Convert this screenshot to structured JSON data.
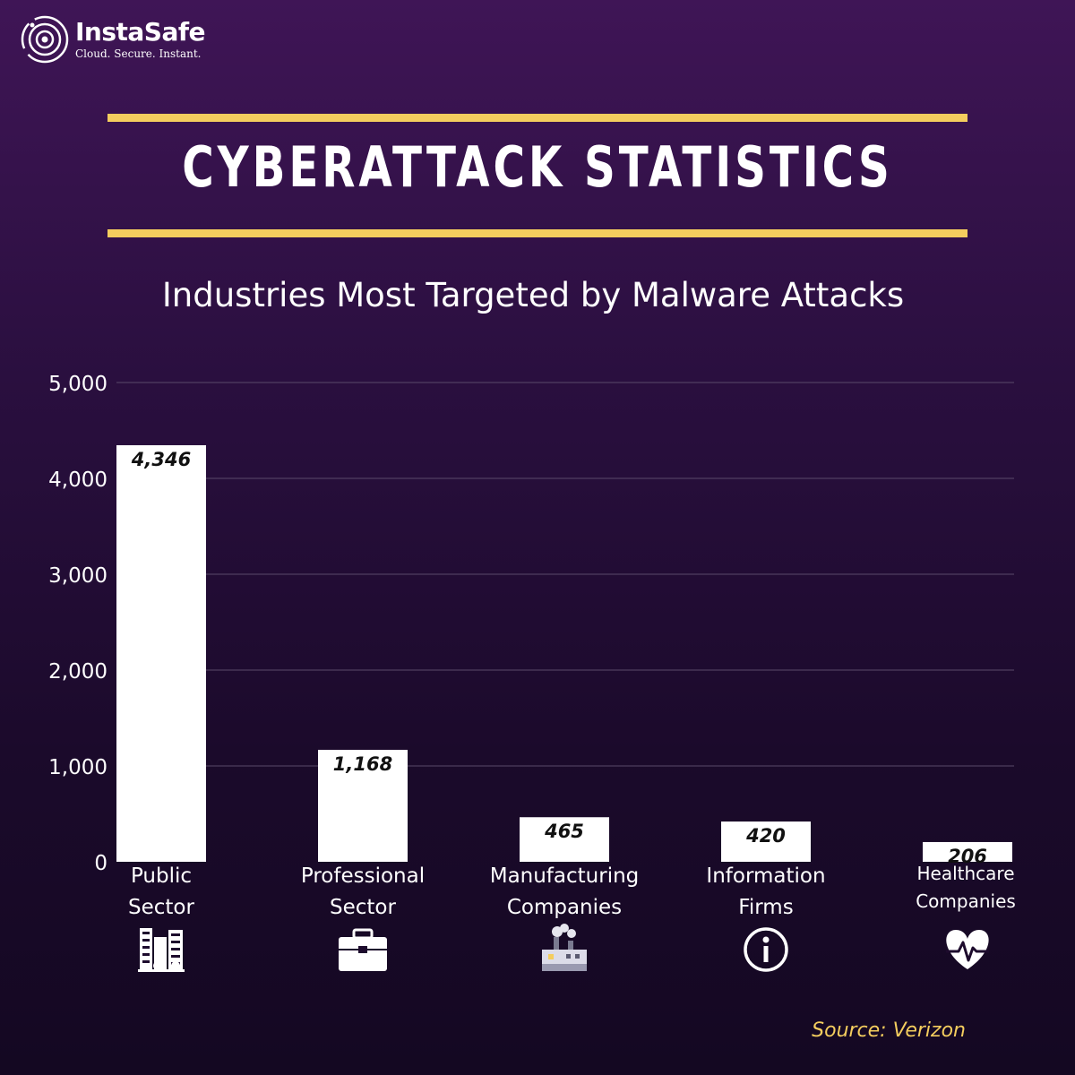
{
  "brand": {
    "name": "InstaSafe",
    "tagline": "Cloud. Secure. Instant."
  },
  "title": "CYBERATTACK STATISTICS",
  "source": "Source: Verizon",
  "colors": {
    "accent": "#f4cd5e",
    "bar": "#ffffff",
    "gridline": "#5a4a6a"
  },
  "chart_data": {
    "type": "bar",
    "title": "Industries Most Targeted by Malware Attacks",
    "xlabel": "",
    "ylabel": "",
    "ylim": [
      0,
      5000
    ],
    "yticks": [
      "0",
      "1,000",
      "2,000",
      "3,000",
      "4,000",
      "5,000"
    ],
    "grid": true,
    "categories": [
      [
        "Public",
        "Sector"
      ],
      [
        "Professional",
        "Sector"
      ],
      [
        "Manufacturing",
        "Companies"
      ],
      [
        "Information",
        "Firms"
      ],
      [
        "Healthcare",
        "Companies"
      ]
    ],
    "category_icons": [
      "buildings-icon",
      "briefcase-icon",
      "factory-icon",
      "info-icon",
      "heart-pulse-icon"
    ],
    "values": [
      4346,
      1168,
      465,
      420,
      206
    ],
    "data_labels": [
      "4,346",
      "1,168",
      "465",
      "420",
      "206"
    ]
  }
}
